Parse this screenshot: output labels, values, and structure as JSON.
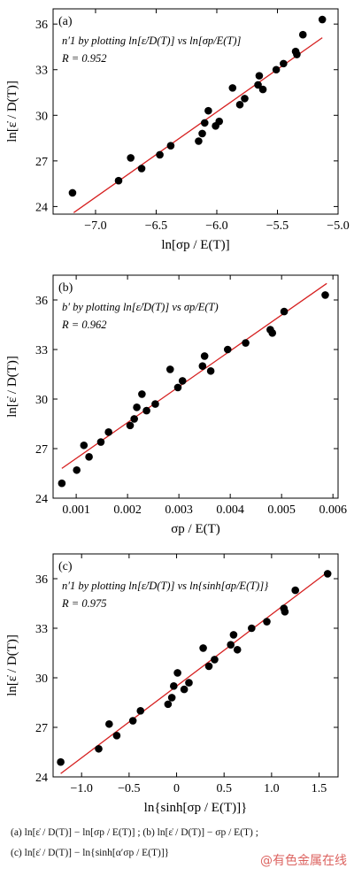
{
  "chart_data": [
    {
      "type": "scatter",
      "panel_label": "(a)",
      "annotation": "n′1 by plotting ln[ε̇/D(T)] vs ln[σp/E(T)]",
      "r_text": "R = 0.952",
      "xlabel": "ln[σp / E(T)]",
      "ylabel": "ln[ε̇ / D(T)]",
      "xlim": [
        -7.35,
        -5.0
      ],
      "ylim": [
        23.5,
        37.0
      ],
      "xticks": [
        -7.0,
        -6.5,
        -6.0,
        -5.5,
        -5.0
      ],
      "xtick_labels": [
        "−7.0",
        "−6.5",
        "−6.0",
        "−5.5",
        "−5.0"
      ],
      "yticks": [
        24,
        27,
        30,
        33,
        36
      ],
      "ytick_labels": [
        "24",
        "27",
        "30",
        "33",
        "36"
      ],
      "fit": [
        [
          -7.18,
          23.6
        ],
        [
          -5.13,
          35.1
        ]
      ],
      "points": [
        [
          -7.19,
          24.9
        ],
        [
          -6.81,
          25.7
        ],
        [
          -6.71,
          27.2
        ],
        [
          -6.62,
          26.5
        ],
        [
          -6.47,
          27.4
        ],
        [
          -6.38,
          28.0
        ],
        [
          -6.15,
          28.3
        ],
        [
          -6.12,
          28.8
        ],
        [
          -6.1,
          29.5
        ],
        [
          -6.07,
          30.3
        ],
        [
          -6.01,
          29.3
        ],
        [
          -5.98,
          29.6
        ],
        [
          -5.87,
          31.8
        ],
        [
          -5.81,
          30.7
        ],
        [
          -5.77,
          31.1
        ],
        [
          -5.66,
          32.0
        ],
        [
          -5.65,
          32.6
        ],
        [
          -5.62,
          31.7
        ],
        [
          -5.51,
          33.0
        ],
        [
          -5.45,
          33.4
        ],
        [
          -5.35,
          34.2
        ],
        [
          -5.34,
          34.0
        ],
        [
          -5.29,
          35.3
        ],
        [
          -5.13,
          36.3
        ]
      ]
    },
    {
      "type": "scatter",
      "panel_label": "(b)",
      "annotation": "b′ by plotting ln[ε̇/D(T)] vs σp/E(T)",
      "r_text": "R = 0.962",
      "xlabel": "σp / E(T)",
      "ylabel": "ln[ε̇ / D(T)]",
      "xlim": [
        0.00055,
        0.0061
      ],
      "ylim": [
        24.0,
        37.5
      ],
      "xticks": [
        0.001,
        0.002,
        0.003,
        0.004,
        0.005,
        0.006
      ],
      "xtick_labels": [
        "0.001",
        "0.002",
        "0.003",
        "0.004",
        "0.005",
        "0.006"
      ],
      "yticks": [
        24,
        27,
        30,
        33,
        36
      ],
      "ytick_labels": [
        "24",
        "27",
        "30",
        "33",
        "36"
      ],
      "fit": [
        [
          0.00072,
          25.8
        ],
        [
          0.00588,
          37.0
        ]
      ],
      "points": [
        [
          0.00072,
          24.9
        ],
        [
          0.00101,
          25.7
        ],
        [
          0.00115,
          27.2
        ],
        [
          0.00125,
          26.5
        ],
        [
          0.00148,
          27.4
        ],
        [
          0.00163,
          28.0
        ],
        [
          0.00205,
          28.4
        ],
        [
          0.00213,
          28.8
        ],
        [
          0.00218,
          29.5
        ],
        [
          0.00228,
          30.3
        ],
        [
          0.00237,
          29.3
        ],
        [
          0.00254,
          29.7
        ],
        [
          0.00283,
          31.8
        ],
        [
          0.00298,
          30.7
        ],
        [
          0.00307,
          31.1
        ],
        [
          0.00346,
          32.0
        ],
        [
          0.0035,
          32.6
        ],
        [
          0.00362,
          31.7
        ],
        [
          0.00395,
          33.0
        ],
        [
          0.0043,
          33.4
        ],
        [
          0.00478,
          34.2
        ],
        [
          0.00482,
          34.0
        ],
        [
          0.00505,
          35.3
        ],
        [
          0.00585,
          36.3
        ]
      ]
    },
    {
      "type": "scatter",
      "panel_label": "(c)",
      "annotation": "n′1 by plotting ln[ε̇/D(T)] vs ln{sinh[σp/E(T)]}",
      "r_text": "R = 0.975",
      "xlabel": "ln{sinh[σp / E(T)]}",
      "ylabel": "ln[ε̇ / D(T)]",
      "xlim": [
        -1.3,
        1.7
      ],
      "ylim": [
        24.0,
        37.5
      ],
      "xticks": [
        -1.0,
        -0.5,
        0.0,
        0.5,
        1.0,
        1.5
      ],
      "xtick_labels": [
        "−1.0",
        "−0.5",
        "0",
        "0.5",
        "1.0",
        "1.5"
      ],
      "yticks": [
        24,
        27,
        30,
        33,
        36
      ],
      "ytick_labels": [
        "24",
        "27",
        "30",
        "33",
        "36"
      ],
      "fit": [
        [
          -1.22,
          24.2
        ],
        [
          1.59,
          36.4
        ]
      ],
      "points": [
        [
          -1.22,
          24.9
        ],
        [
          -0.82,
          25.7
        ],
        [
          -0.71,
          27.2
        ],
        [
          -0.63,
          26.5
        ],
        [
          -0.46,
          27.4
        ],
        [
          -0.38,
          28.0
        ],
        [
          -0.09,
          28.4
        ],
        [
          -0.05,
          28.8
        ],
        [
          -0.03,
          29.5
        ],
        [
          0.01,
          30.3
        ],
        [
          0.08,
          29.3
        ],
        [
          0.13,
          29.7
        ],
        [
          0.28,
          31.8
        ],
        [
          0.34,
          30.7
        ],
        [
          0.4,
          31.1
        ],
        [
          0.57,
          32.0
        ],
        [
          0.6,
          32.6
        ],
        [
          0.64,
          31.7
        ],
        [
          0.79,
          33.0
        ],
        [
          0.95,
          33.4
        ],
        [
          1.13,
          34.2
        ],
        [
          1.14,
          34.0
        ],
        [
          1.25,
          35.3
        ],
        [
          1.59,
          36.3
        ]
      ]
    }
  ],
  "captions": [
    "(a)  ln[ε̇ / D(T)] − ln[σp / E(T)] ;  (b)  ln[ε̇ / D(T)] − σp / E(T) ;",
    "(c)  ln[ε̇ / D(T)] − ln{sinh[α′σp / E(T)]}"
  ],
  "watermark": "@有色金属在线",
  "colors": {
    "points": "#000000",
    "fit_line": "#d62020",
    "axes": "#000000",
    "watermark": "#d9534f"
  }
}
